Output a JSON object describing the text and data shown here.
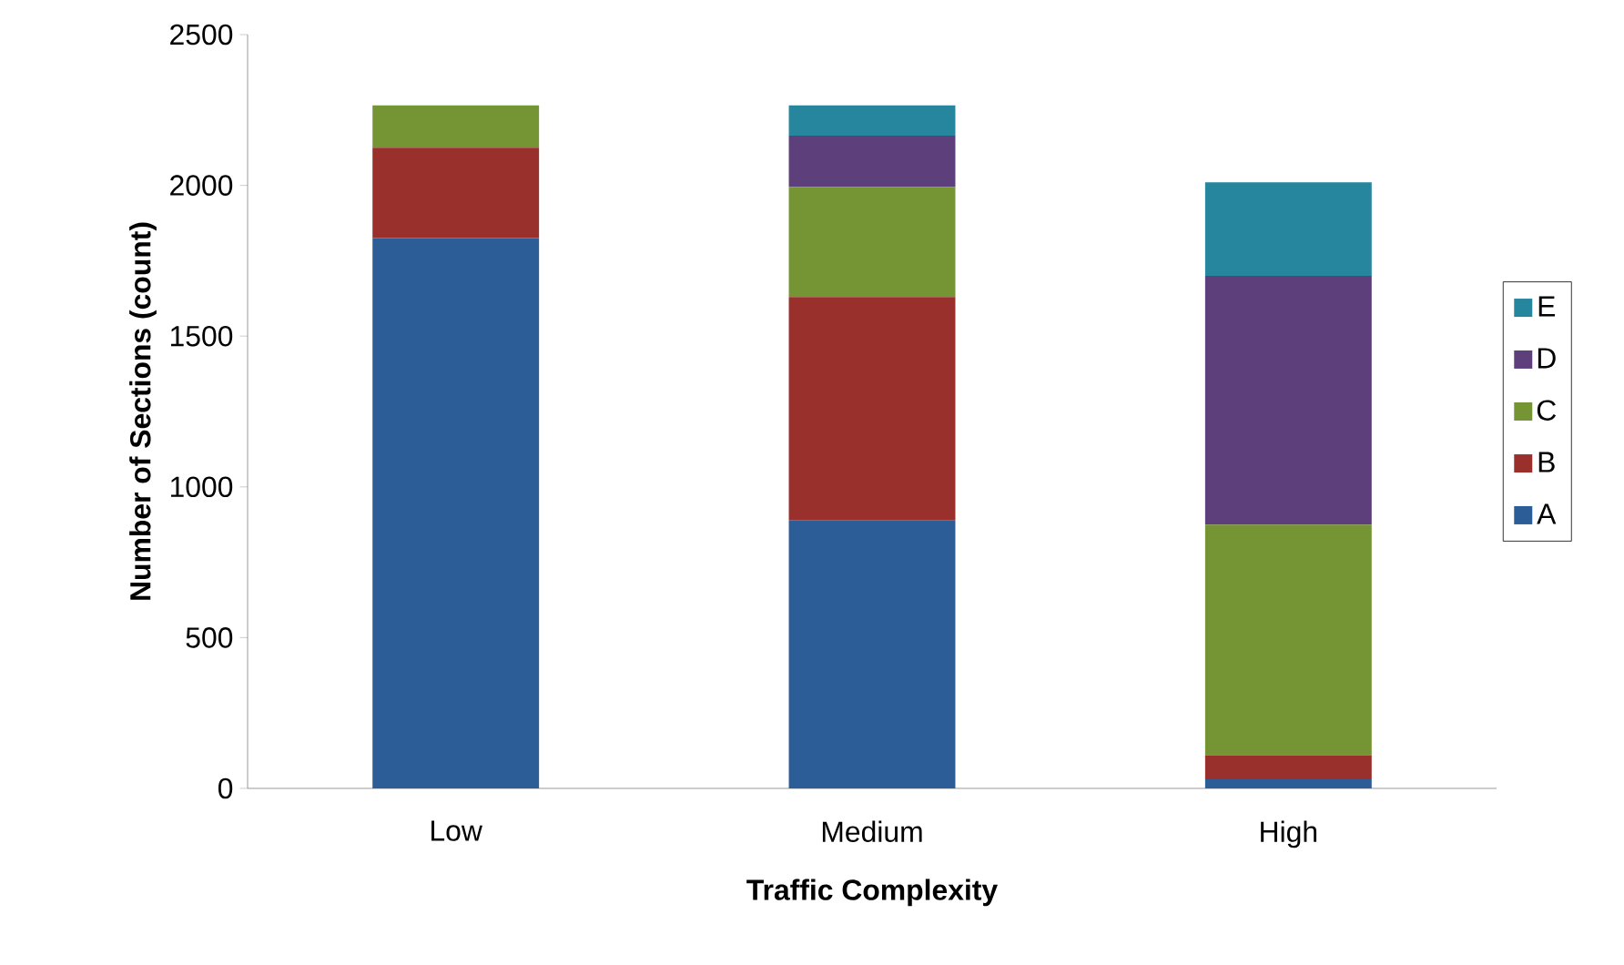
{
  "chart_data": {
    "type": "bar",
    "stacked": true,
    "xlabel": "Traffic Complexity",
    "ylabel": "Number of Sections (count)",
    "categories": [
      "Low",
      "Medium",
      "High"
    ],
    "series": [
      {
        "name": "A",
        "color": "#2c5d96",
        "values": [
          1825,
          890,
          30
        ]
      },
      {
        "name": "B",
        "color": "#99302c",
        "values": [
          300,
          740,
          80
        ]
      },
      {
        "name": "C",
        "color": "#759534",
        "values": [
          140,
          365,
          765
        ]
      },
      {
        "name": "D",
        "color": "#5d3f7c",
        "values": [
          null,
          170,
          825
        ]
      },
      {
        "name": "E",
        "color": "#26869e",
        "values": [
          null,
          100,
          310
        ]
      }
    ],
    "ylim": [
      0,
      2500
    ],
    "yticks": [
      0,
      500,
      1000,
      1500,
      2000,
      2500
    ],
    "legend": "right"
  }
}
